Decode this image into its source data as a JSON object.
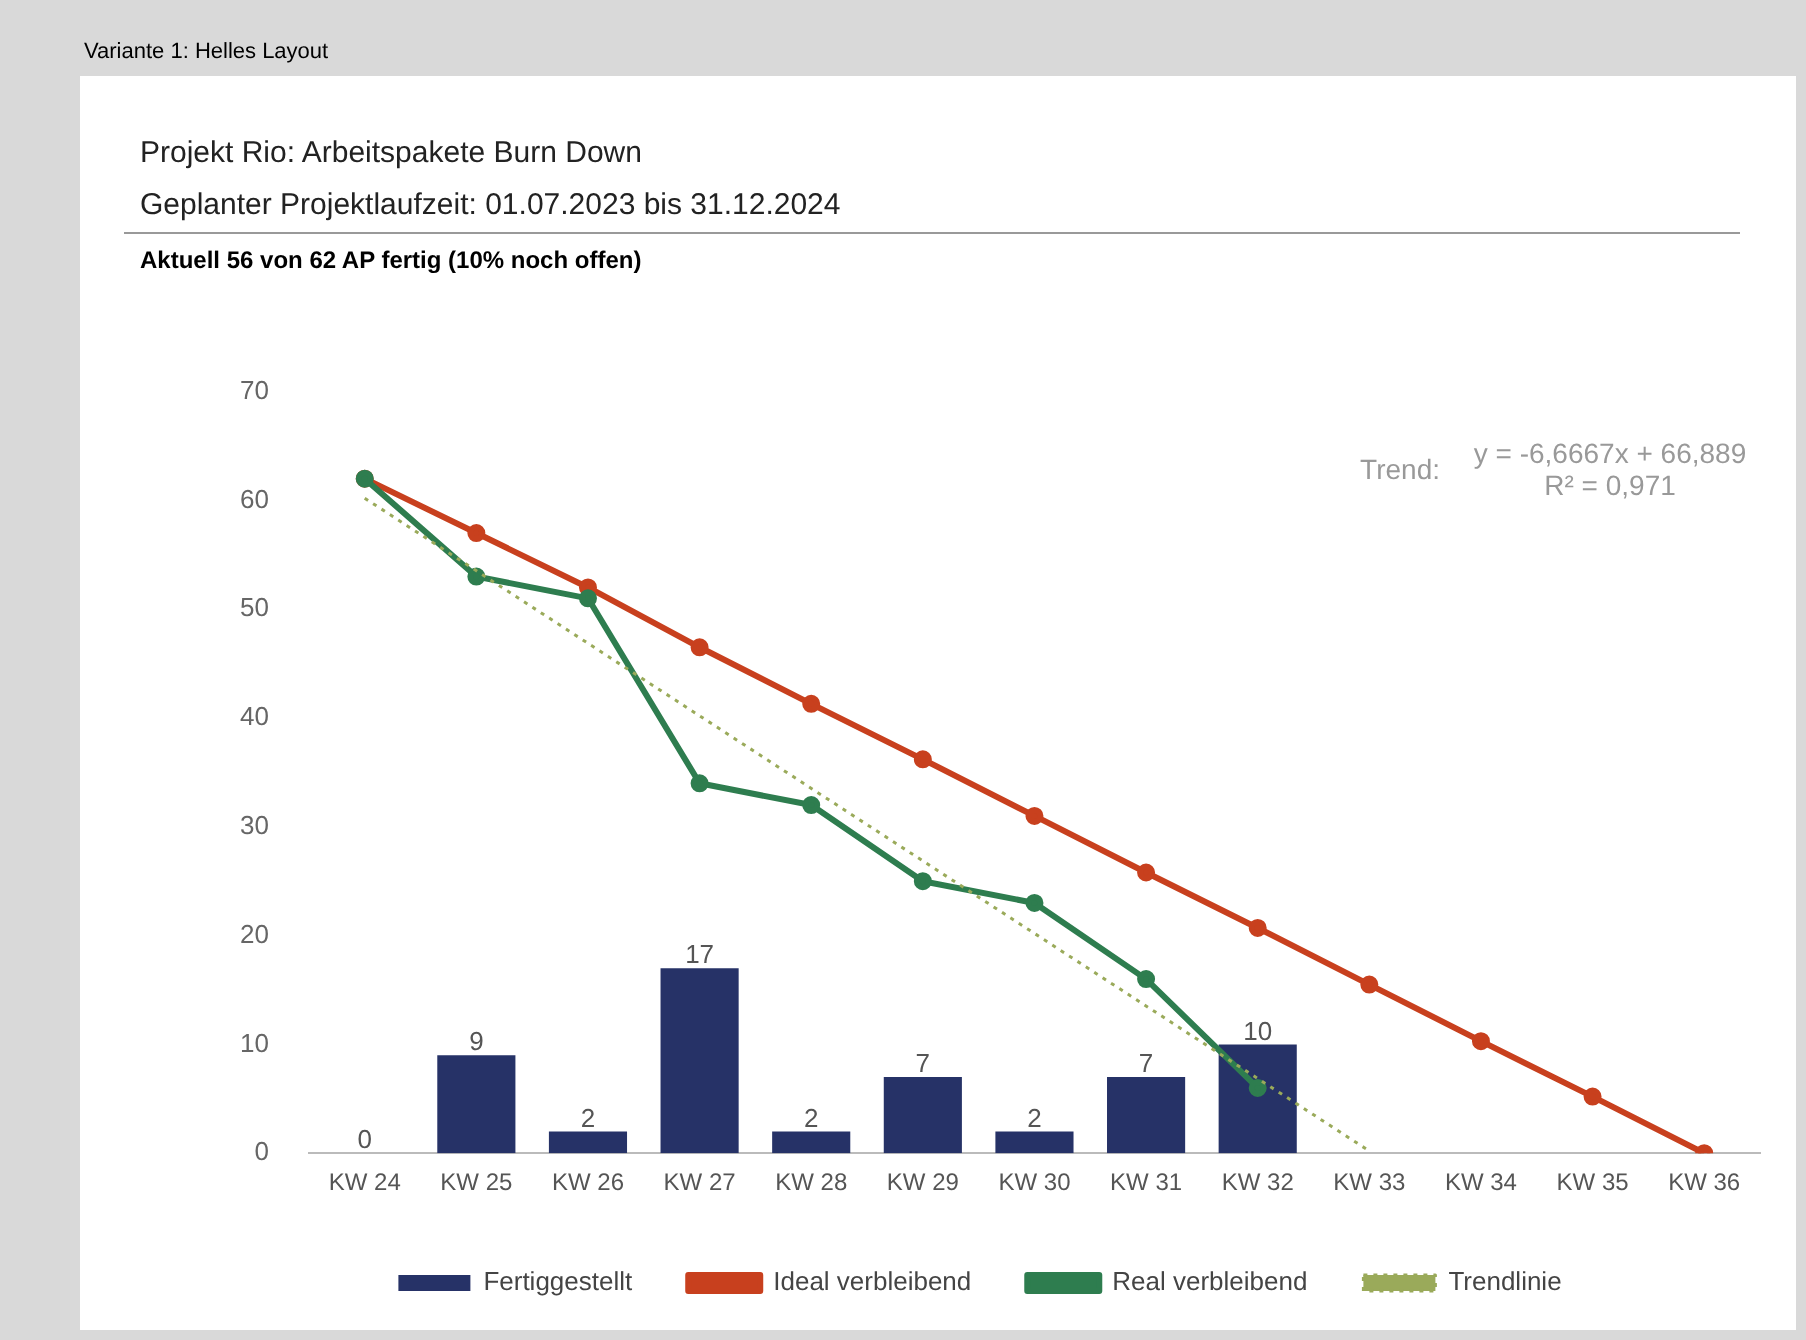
{
  "chart_data": {
    "type": "bar",
    "title": "Projekt Rio: Arbeitspakete Burn Down",
    "subtitle": "Geplanter Projektlaufzeit: 01.07.2023 bis 31.12.2024",
    "annotations": [
      "Variante 1: Helles Layout",
      "Aktuell 56 von 62 AP fertig (10% noch offen)",
      "Trend:",
      "y = -6,6667x + 66,889",
      "R² = 0,971"
    ],
    "categories": [
      "KW 24",
      "KW 25",
      "KW 26",
      "KW 27",
      "KW 28",
      "KW 29",
      "KW 30",
      "KW 31",
      "KW 32",
      "KW 33",
      "KW 34",
      "KW 35",
      "KW 36"
    ],
    "series": [
      {
        "name": "Fertiggestellt",
        "color": "#263267",
        "values": [
          0,
          9,
          2,
          17,
          2,
          7,
          2,
          7,
          10,
          null,
          null,
          null,
          null
        ],
        "value_labels": [
          "0",
          "9",
          "2",
          "17",
          "2",
          "7",
          "2",
          "7",
          "10",
          null,
          null,
          null,
          null
        ]
      },
      {
        "name": "Ideal verbleibend",
        "type": "line",
        "color": "#c8401e",
        "marker": "circle",
        "line_style": "solid",
        "values": [
          62,
          57,
          52,
          46.5,
          41.3,
          36.2,
          31,
          25.8,
          20.7,
          15.5,
          10.3,
          5.2,
          0
        ]
      },
      {
        "name": "Real verbleibend",
        "type": "line",
        "color": "#2e7d4f",
        "marker": "circle",
        "line_style": "solid",
        "values": [
          62,
          53,
          51,
          34,
          32,
          25,
          23,
          16,
          6,
          null,
          null,
          null,
          null
        ]
      },
      {
        "name": "Trendlinie",
        "type": "line",
        "color": "#9aaa5a",
        "marker": "none",
        "line_style": "dotted",
        "values": [
          60.2,
          null,
          null,
          null,
          null,
          null,
          null,
          null,
          null,
          0.2,
          null,
          null,
          null
        ]
      }
    ],
    "ylim": [
      0,
      70
    ],
    "yticks": [
      0,
      10,
      20,
      30,
      40,
      50,
      60,
      70
    ],
    "grid": false,
    "legend": "bottom"
  }
}
